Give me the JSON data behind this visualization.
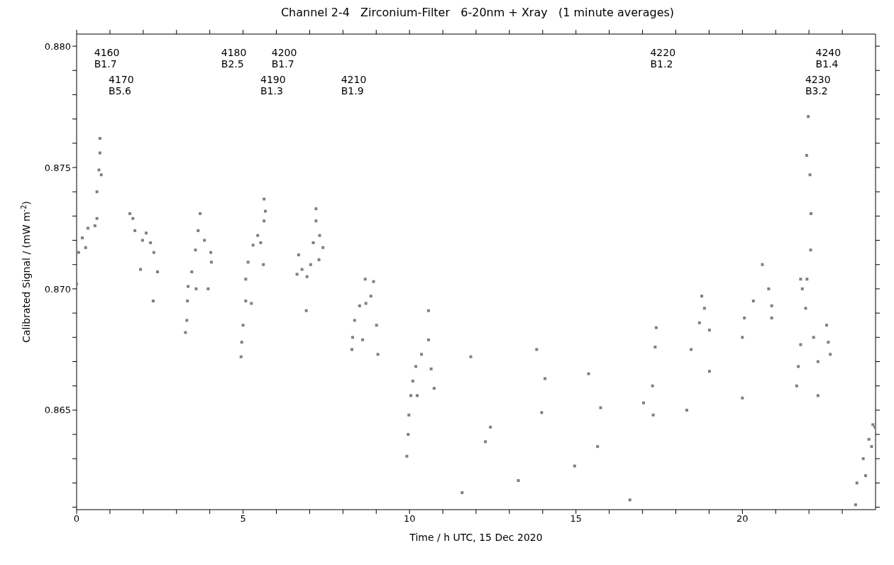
{
  "chart_data": {
    "type": "scatter",
    "title": "Channel 2-4   Zirconium-Filter   6-20nm + Xray   (1 minute averages)",
    "xlabel": "Time / h UTC, 15 Dec 2020",
    "ylabel": "Calibrated Signal / (mW m$^{-2}$)",
    "color": "#808080",
    "marker": "square",
    "xlim": [
      0,
      24
    ],
    "xticks": [
      0,
      {
        "value": 1,
        "label": null
      },
      {
        "value": 2,
        "label": null
      },
      {
        "value": 3,
        "label": null
      },
      {
        "value": 4,
        "label": null
      },
      5,
      {
        "value": 6,
        "label": null
      },
      {
        "value": 7,
        "label": null
      },
      {
        "value": 8,
        "label": null
      },
      {
        "value": 9,
        "label": null
      },
      10,
      {
        "value": 11,
        "label": null
      },
      {
        "value": 12,
        "label": null
      },
      {
        "value": 13,
        "label": null
      },
      {
        "value": 14,
        "label": null
      },
      15,
      {
        "value": 16,
        "label": null
      },
      {
        "value": 17,
        "label": null
      },
      {
        "value": 18,
        "label": null
      },
      {
        "value": 19,
        "label": null
      },
      20,
      {
        "value": 21,
        "label": null
      },
      {
        "value": 22,
        "label": null
      },
      {
        "value": 23,
        "label": null
      }
    ],
    "ylim": [
      0.8609,
      0.8805
    ],
    "yticks": [
      {
        "value": 0.861,
        "label": null
      },
      {
        "value": 0.862,
        "label": null
      },
      {
        "value": 0.863,
        "label": null
      },
      {
        "value": 0.864,
        "label": null
      },
      0.865,
      {
        "value": 0.866,
        "label": null
      },
      {
        "value": 0.867,
        "label": null
      },
      {
        "value": 0.868,
        "label": null
      },
      {
        "value": 0.869,
        "label": null
      },
      {
        "value": 0.87,
        "label": "0.870"
      },
      {
        "value": 0.871,
        "label": null
      },
      {
        "value": 0.872,
        "label": null
      },
      {
        "value": 0.873,
        "label": null
      },
      {
        "value": 0.874,
        "label": null
      },
      0.875,
      {
        "value": 0.876,
        "label": null
      },
      {
        "value": 0.877,
        "label": null
      },
      {
        "value": 0.878,
        "label": null
      },
      {
        "value": 0.879,
        "label": null
      },
      {
        "value": 0.88,
        "label": "0.880"
      }
    ],
    "x": [
      0,
      0.06,
      0.17,
      0.27,
      0.34,
      0.55,
      0.61,
      0.61,
      0.67,
      0.7,
      0.7,
      0.74,
      1.6,
      1.69,
      1.75,
      1.92,
      1.98,
      2.09,
      2.22,
      2.3,
      2.32,
      2.43,
      3.27,
      3.31,
      3.33,
      3.35,
      3.46,
      3.57,
      3.59,
      3.65,
      3.71,
      3.84,
      3.95,
      4.03,
      4.05,
      4.94,
      4.96,
      5.0,
      5.08,
      5.08,
      5.15,
      5.25,
      5.3,
      5.44,
      5.53,
      5.61,
      5.63,
      5.63,
      5.67,
      6.62,
      6.67,
      6.77,
      6.9,
      6.92,
      7.03,
      7.11,
      7.19,
      7.19,
      7.28,
      7.3,
      7.4,
      8.27,
      8.29,
      8.35,
      8.5,
      8.59,
      8.67,
      8.69,
      8.84,
      8.92,
      9.01,
      9.05,
      9.92,
      9.96,
      9.98,
      10.04,
      10.1,
      10.19,
      10.23,
      10.36,
      10.57,
      10.57,
      10.65,
      10.74,
      11.58,
      11.84,
      12.28,
      12.43,
      13.27,
      13.82,
      13.97,
      14.07,
      14.96,
      15.38,
      15.65,
      15.74,
      16.62,
      17.03,
      17.3,
      17.32,
      17.38,
      17.41,
      18.33,
      18.46,
      18.71,
      18.78,
      18.86,
      19.01,
      19.01,
      20.0,
      20.0,
      20.06,
      20.33,
      20.6,
      20.79,
      20.88,
      20.88,
      21.63,
      21.68,
      21.75,
      21.75,
      21.8,
      21.9,
      21.93,
      21.94,
      21.98,
      22.03,
      22.05,
      22.06,
      22.14,
      22.27,
      22.27,
      22.53,
      22.58,
      22.64,
      23.4,
      23.44,
      23.63,
      23.7,
      23.8,
      23.88,
      23.92,
      23.98
    ],
    "values": [
      0.8702,
      0.8715,
      0.8721,
      0.8717,
      0.8725,
      0.8726,
      0.8729,
      0.874,
      0.8749,
      0.8762,
      0.8756,
      0.8747,
      0.8731,
      0.8729,
      0.8724,
      0.8708,
      0.872,
      0.8723,
      0.8719,
      0.8695,
      0.8715,
      0.8707,
      0.8682,
      0.8687,
      0.8695,
      0.8701,
      0.8707,
      0.8716,
      0.87,
      0.8724,
      0.8731,
      0.872,
      0.87,
      0.8715,
      0.8711,
      0.8672,
      0.8678,
      0.8685,
      0.8695,
      0.8704,
      0.8711,
      0.8694,
      0.8718,
      0.8722,
      0.8719,
      0.871,
      0.8728,
      0.8737,
      0.8732,
      0.8706,
      0.8714,
      0.8708,
      0.8691,
      0.8705,
      0.871,
      0.8719,
      0.8728,
      0.8733,
      0.8712,
      0.8722,
      0.8717,
      0.8675,
      0.868,
      0.8687,
      0.8693,
      0.8679,
      0.8704,
      0.8694,
      0.8697,
      0.8703,
      0.8685,
      0.8673,
      0.8631,
      0.864,
      0.8648,
      0.8656,
      0.8662,
      0.8668,
      0.8656,
      0.8673,
      0.8679,
      0.8691,
      0.8667,
      0.8659,
      0.8616,
      0.8672,
      0.8637,
      0.8643,
      0.8621,
      0.8675,
      0.8649,
      0.8663,
      0.8627,
      0.8665,
      0.8635,
      0.8651,
      0.8613,
      0.8653,
      0.866,
      0.8648,
      0.8676,
      0.8684,
      0.865,
      0.8675,
      0.8686,
      0.8697,
      0.8692,
      0.8683,
      0.8666,
      0.8655,
      0.868,
      0.8688,
      0.8695,
      0.871,
      0.87,
      0.8693,
      0.8688,
      0.866,
      0.8668,
      0.8704,
      0.8677,
      0.87,
      0.8692,
      0.8755,
      0.8704,
      0.8771,
      0.8747,
      0.8716,
      0.8731,
      0.868,
      0.867,
      0.8656,
      0.8685,
      0.8678,
      0.8673,
      0.8611,
      0.862,
      0.863,
      0.8623,
      0.8638,
      0.8635,
      0.8644,
      0.8643
    ],
    "annotations": [
      "4160\nB1.7",
      "4170\nB5.6",
      "4180\nB2.5",
      "4190\nB1.3",
      "4200\nB1.7",
      "4210\nB1.9",
      "4220\nB1.2",
      "4230\nB3.2",
      "4240\nB1.4"
    ]
  }
}
